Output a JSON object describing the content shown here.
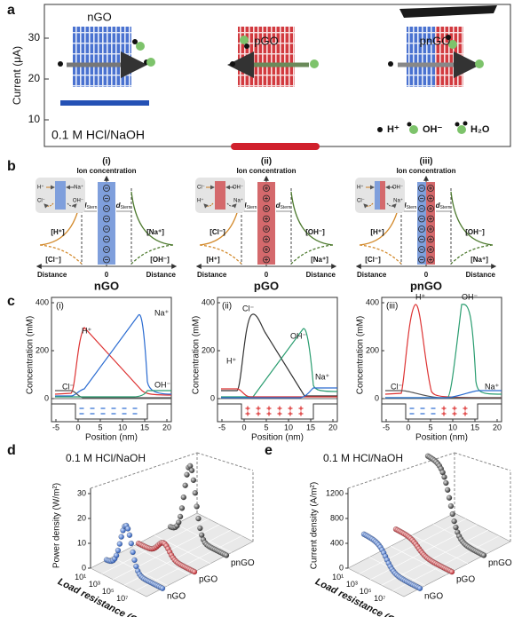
{
  "panel_a": {
    "label": "a",
    "y_axis_title": "Current (μA)",
    "y_ticks": [
      "30",
      "20",
      "10"
    ],
    "devices": [
      "nGO",
      "pGO",
      "pnGO"
    ],
    "electrolyte": "0.1 M HCl/NaOH",
    "legend": [
      "H⁺",
      "OH⁻",
      "H₂O"
    ]
  },
  "panel_b": {
    "label": "b",
    "subpanels": [
      {
        "index": "(i)",
        "heading": "Ion concentration",
        "name": "nGO",
        "left_top": "[H⁺]",
        "left_bottom": "[Cl⁻]",
        "right_top": "[Na⁺]",
        "right_bottom": "[OH⁻]",
        "inset": [
          "H⁺",
          "Na⁺",
          "Cl⁻",
          "OH⁻"
        ]
      },
      {
        "index": "(ii)",
        "heading": "Ion concentration",
        "name": "pGO",
        "left_top": "[Cl⁻]",
        "left_bottom": "[H⁺]",
        "right_top": "[OH⁻]",
        "right_bottom": "[Na⁺]",
        "inset": [
          "Cl⁻",
          "OH⁻",
          "H⁺",
          "Na⁺"
        ]
      },
      {
        "index": "(iii)",
        "heading": "Ion concentration",
        "name": "pnGO",
        "left_top": "[H⁺]",
        "left_bottom": "[Cl⁻]",
        "right_top": "[OH⁻]",
        "right_bottom": "[Na⁺]",
        "inset": [
          "H⁺",
          "OH⁻",
          "Cl⁻",
          "Na⁺"
        ]
      }
    ],
    "axis_label": "Distance",
    "origin": "0",
    "stern_symbol": "d",
    "stern_subscript": "Stern"
  },
  "panel_c": {
    "label": "c",
    "y_axis_title": "Concentration (mM)",
    "x_axis_title": "Position (nm)",
    "y_ticks": [
      "400",
      "200",
      "0"
    ],
    "x_ticks": [
      "-5",
      "0",
      "5",
      "10",
      "15",
      "20"
    ],
    "subpanels": [
      {
        "index": "(i)",
        "ions": [
          "H⁺",
          "Na⁺",
          "Cl⁻",
          "OH⁻"
        ]
      },
      {
        "index": "(ii)",
        "ions": [
          "Cl⁻",
          "OH⁻",
          "H⁺",
          "Na⁺"
        ]
      },
      {
        "index": "(iii)",
        "ions": [
          "H⁺",
          "OH⁻",
          "Cl⁻",
          "Na⁺"
        ]
      }
    ]
  },
  "panel_d": {
    "label": "d",
    "electrolyte": "0.1 M HCl/NaOH",
    "y_axis_title": "Power density (W/m²)",
    "y_ticks": [
      "0",
      "10",
      "20",
      "30"
    ],
    "x_axis_title": "Load resistance (Ω)",
    "x_ticks": [
      "10¹",
      "10³",
      "10⁵",
      "10⁷"
    ],
    "devices": [
      "nGO",
      "pGO",
      "pnGO"
    ]
  },
  "panel_e": {
    "label": "e",
    "electrolyte": "0.1 M HCl/NaOH",
    "y_axis_title": "Current density (A/m²)",
    "y_ticks": [
      "0",
      "400",
      "800",
      "1200"
    ],
    "x_axis_title": "Load resistance (Ω)",
    "x_ticks": [
      "10¹",
      "10³",
      "10⁵",
      "10⁷"
    ],
    "devices": [
      "nGO",
      "pGO",
      "pnGO"
    ]
  }
}
